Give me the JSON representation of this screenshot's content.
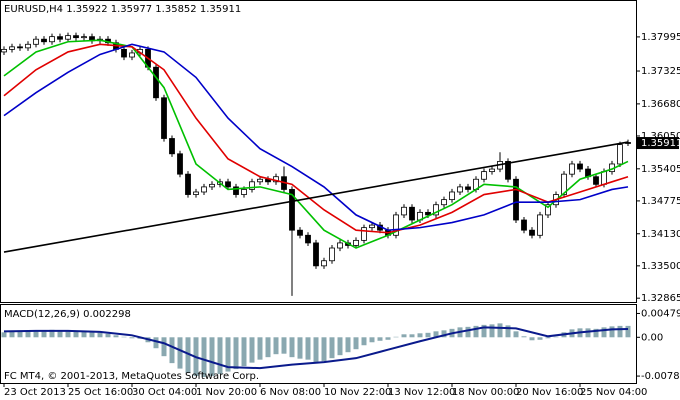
{
  "chart_data": [
    {
      "type": "candlestick",
      "title": "EURUSD,H4",
      "annotation": "FC MT4, © 2001-2013, MetaQuotes Software Corp.",
      "categories": [
        "23 Oct 2013",
        null,
        null,
        null,
        null,
        null,
        null,
        null,
        "25 Oct 16:00",
        null,
        null,
        null,
        null,
        null,
        null,
        null,
        "30 Oct 04:00",
        null,
        null,
        null,
        null,
        null,
        null,
        null,
        "1 Nov 20:00",
        null,
        null,
        null,
        null,
        null,
        null,
        null,
        "6 Nov 08:00",
        null,
        null,
        null,
        null,
        null,
        null,
        null,
        "10 Nov 22:00",
        null,
        null,
        null,
        null,
        null,
        null,
        null,
        "13 Nov 12:00",
        null,
        null,
        null,
        null,
        null,
        null,
        null,
        "18 Nov 00:00",
        null,
        null,
        null,
        null,
        null,
        null,
        null,
        "20 Nov 16:00",
        null,
        null,
        null,
        null,
        null,
        null,
        null,
        "25 Nov 04:00",
        null,
        null,
        null,
        null,
        null,
        null
      ],
      "open": [
        1.377,
        1.3775,
        1.378,
        1.3778,
        1.3785,
        1.3795,
        1.379,
        1.38,
        1.3795,
        1.3802,
        1.3798,
        1.38,
        1.3792,
        1.3795,
        1.3788,
        1.3775,
        1.376,
        1.3768,
        1.3775,
        1.374,
        1.368,
        1.36,
        1.357,
        1.353,
        1.349,
        1.3495,
        1.3505,
        1.351,
        1.3515,
        1.3505,
        1.349,
        1.35,
        1.3515,
        1.352,
        1.3515,
        1.3525,
        1.35,
        1.342,
        1.341,
        1.3395,
        1.335,
        1.336,
        1.3385,
        1.3395,
        1.339,
        1.34,
        1.3425,
        1.343,
        1.342,
        1.341,
        1.345,
        1.3465,
        1.344,
        1.3455,
        1.345,
        1.347,
        1.348,
        1.3495,
        1.3505,
        1.35,
        1.352,
        1.3535,
        1.354,
        1.3555,
        1.352,
        1.344,
        1.342,
        1.341,
        1.345,
        1.347,
        1.349,
        1.353,
        1.355,
        1.354,
        1.3525,
        1.351,
        1.3535,
        1.355,
        1.35922
      ],
      "high": [
        1.3781,
        1.3786,
        1.3786,
        1.3791,
        1.3801,
        1.3801,
        1.3806,
        1.3806,
        1.3808,
        1.3808,
        1.3806,
        1.3806,
        1.3801,
        1.3801,
        1.3794,
        1.3781,
        1.3774,
        1.3781,
        1.3781,
        1.3746,
        1.3686,
        1.3606,
        1.3576,
        1.3536,
        1.3501,
        1.3511,
        1.3516,
        1.3521,
        1.3521,
        1.3511,
        1.3506,
        1.3521,
        1.3526,
        1.3526,
        1.3531,
        1.3545,
        1.3506,
        1.3426,
        1.3416,
        1.3401,
        1.3366,
        1.3391,
        1.3401,
        1.3401,
        1.3406,
        1.3431,
        1.3436,
        1.3436,
        1.3426,
        1.3456,
        1.3471,
        1.3471,
        1.3461,
        1.3461,
        1.3476,
        1.3486,
        1.3501,
        1.3511,
        1.3511,
        1.3526,
        1.3541,
        1.3546,
        1.3573,
        1.3561,
        1.3526,
        1.3446,
        1.3426,
        1.3456,
        1.3476,
        1.3496,
        1.3536,
        1.3556,
        1.3556,
        1.3546,
        1.3531,
        1.3541,
        1.3556,
        1.3594,
        1.35977
      ],
      "low": [
        1.3764,
        1.3769,
        1.3772,
        1.3772,
        1.3779,
        1.3784,
        1.3784,
        1.3789,
        1.3789,
        1.3792,
        1.3792,
        1.3786,
        1.3786,
        1.3782,
        1.3769,
        1.3754,
        1.3754,
        1.3762,
        1.3734,
        1.3674,
        1.3594,
        1.3564,
        1.3524,
        1.3484,
        1.3484,
        1.3489,
        1.3499,
        1.3504,
        1.3499,
        1.3484,
        1.3484,
        1.3494,
        1.3509,
        1.3509,
        1.3509,
        1.3494,
        1.3291,
        1.3404,
        1.3389,
        1.3344,
        1.3344,
        1.3354,
        1.3379,
        1.3384,
        1.3384,
        1.3394,
        1.3419,
        1.3414,
        1.3404,
        1.3404,
        1.3444,
        1.3434,
        1.3434,
        1.3444,
        1.3444,
        1.3464,
        1.3474,
        1.3489,
        1.3494,
        1.3494,
        1.3514,
        1.3529,
        1.3534,
        1.3514,
        1.3434,
        1.3414,
        1.3404,
        1.3404,
        1.3444,
        1.3464,
        1.3484,
        1.3524,
        1.3534,
        1.3519,
        1.3504,
        1.3504,
        1.3529,
        1.3544,
        1.35852
      ],
      "close": [
        1.3775,
        1.378,
        1.3778,
        1.3785,
        1.3795,
        1.379,
        1.38,
        1.3795,
        1.3802,
        1.3798,
        1.38,
        1.3792,
        1.3795,
        1.3788,
        1.3775,
        1.376,
        1.3768,
        1.3775,
        1.374,
        1.368,
        1.36,
        1.357,
        1.353,
        1.349,
        1.3495,
        1.3505,
        1.351,
        1.3515,
        1.3505,
        1.349,
        1.35,
        1.3515,
        1.352,
        1.3515,
        1.3525,
        1.35,
        1.342,
        1.341,
        1.3395,
        1.335,
        1.336,
        1.3385,
        1.3395,
        1.339,
        1.34,
        1.3425,
        1.343,
        1.342,
        1.341,
        1.345,
        1.3465,
        1.344,
        1.3455,
        1.345,
        1.347,
        1.348,
        1.3495,
        1.3505,
        1.35,
        1.352,
        1.3535,
        1.354,
        1.3555,
        1.352,
        1.344,
        1.342,
        1.341,
        1.345,
        1.347,
        1.349,
        1.353,
        1.355,
        1.354,
        1.3525,
        1.351,
        1.3535,
        1.355,
        1.3588,
        1.35911
      ],
      "overlays": [
        {
          "color": "#00c000",
          "x": [
            0,
            4,
            8,
            12,
            16,
            20,
            24,
            28,
            32,
            36,
            40,
            44,
            48,
            52,
            56,
            60,
            64,
            68,
            72,
            76,
            78
          ],
          "values": [
            1.3723,
            1.377,
            1.379,
            1.3793,
            1.378,
            1.37,
            1.355,
            1.35,
            1.3505,
            1.349,
            1.342,
            1.3385,
            1.341,
            1.344,
            1.347,
            1.351,
            1.3505,
            1.3465,
            1.352,
            1.354,
            1.3555
          ]
        },
        {
          "color": "#e00000",
          "x": [
            0,
            4,
            8,
            12,
            16,
            20,
            24,
            28,
            32,
            36,
            40,
            44,
            48,
            52,
            56,
            60,
            64,
            68,
            72,
            76,
            78
          ],
          "values": [
            1.3684,
            1.3735,
            1.377,
            1.3785,
            1.378,
            1.3735,
            1.364,
            1.356,
            1.3525,
            1.351,
            1.346,
            1.342,
            1.3415,
            1.343,
            1.3455,
            1.349,
            1.35,
            1.3475,
            1.3495,
            1.3515,
            1.3525
          ]
        },
        {
          "color": "#0000c8",
          "x": [
            0,
            4,
            8,
            12,
            16,
            20,
            24,
            28,
            32,
            36,
            40,
            44,
            48,
            52,
            56,
            60,
            64,
            68,
            72,
            76,
            78
          ],
          "values": [
            1.3645,
            1.369,
            1.373,
            1.3765,
            1.3785,
            1.377,
            1.372,
            1.364,
            1.358,
            1.3545,
            1.3505,
            1.345,
            1.342,
            1.3425,
            1.3435,
            1.345,
            1.3475,
            1.3475,
            1.348,
            1.35,
            1.3505
          ]
        },
        {
          "color": "#000000",
          "x": [
            0,
            78
          ],
          "values": [
            1.3377,
            1.3593
          ]
        }
      ],
      "ylim": [
        1.3279,
        1.387
      ],
      "yticks": [
        1.37995,
        1.37325,
        {
          "value": 1.3668,
          "label": "1.36680"
        },
        {
          "value": 1.3605,
          "label": "1.36050"
        },
        1.35405,
        1.34775,
        {
          "value": 1.3413,
          "label": "1.34130"
        },
        {
          "value": 1.335,
          "label": "1.33500"
        },
        1.32865
      ],
      "color": "#000000"
    },
    {
      "type": "bar",
      "title": "MACD(12,26,9)",
      "values": [
        0.001,
        0.0012,
        0.0012,
        0.0013,
        0.0014,
        0.0014,
        0.0015,
        0.0014,
        0.0014,
        0.0013,
        0.0012,
        0.001,
        0.0009,
        0.0007,
        0.0004,
        0.0001,
        -0.0002,
        -0.0003,
        -0.001,
        -0.0022,
        -0.0038,
        -0.0052,
        -0.0063,
        -0.0072,
        -0.0078,
        -0.008,
        -0.0078,
        -0.0074,
        -0.0069,
        -0.0064,
        -0.0058,
        -0.0051,
        -0.0045,
        -0.004,
        -0.0034,
        -0.0033,
        -0.004,
        -0.0043,
        -0.0045,
        -0.005,
        -0.0048,
        -0.0042,
        -0.0036,
        -0.003,
        -0.0024,
        -0.0016,
        -0.001,
        -0.0007,
        -0.0005,
        0.0001,
        0.0006,
        0.0006,
        0.0008,
        0.0009,
        0.0012,
        0.0014,
        0.0017,
        0.002,
        0.0021,
        0.0023,
        0.0025,
        0.0026,
        0.0028,
        0.0024,
        0.0012,
        0.0002,
        -0.0006,
        -0.0005,
        -0.0002,
        0.0001,
        0.001,
        0.0016,
        0.0018,
        0.0018,
        0.0017,
        0.002,
        0.0022,
        0.0023,
        0.002298
      ],
      "color": "#8aa8b0",
      "signal": {
        "color": "#0a1a8c",
        "x": [
          0,
          4,
          8,
          12,
          16,
          20,
          24,
          28,
          32,
          36,
          40,
          44,
          48,
          52,
          56,
          60,
          64,
          68,
          72,
          76,
          78
        ],
        "values": [
          0.0012,
          0.0013,
          0.0013,
          0.0011,
          0.0004,
          -0.0012,
          -0.004,
          -0.006,
          -0.0062,
          -0.0055,
          -0.005,
          -0.0042,
          -0.0025,
          -0.0008,
          0.0008,
          0.002,
          0.0018,
          0.0002,
          0.001,
          0.0016,
          0.001674
        ]
      },
      "ylim": [
        -0.0092,
        0.0065
      ],
      "yticks": [
        0.004798,
        {
          "value": 0,
          "label": "0.00"
        },
        -0.007806
      ]
    }
  ]
}
